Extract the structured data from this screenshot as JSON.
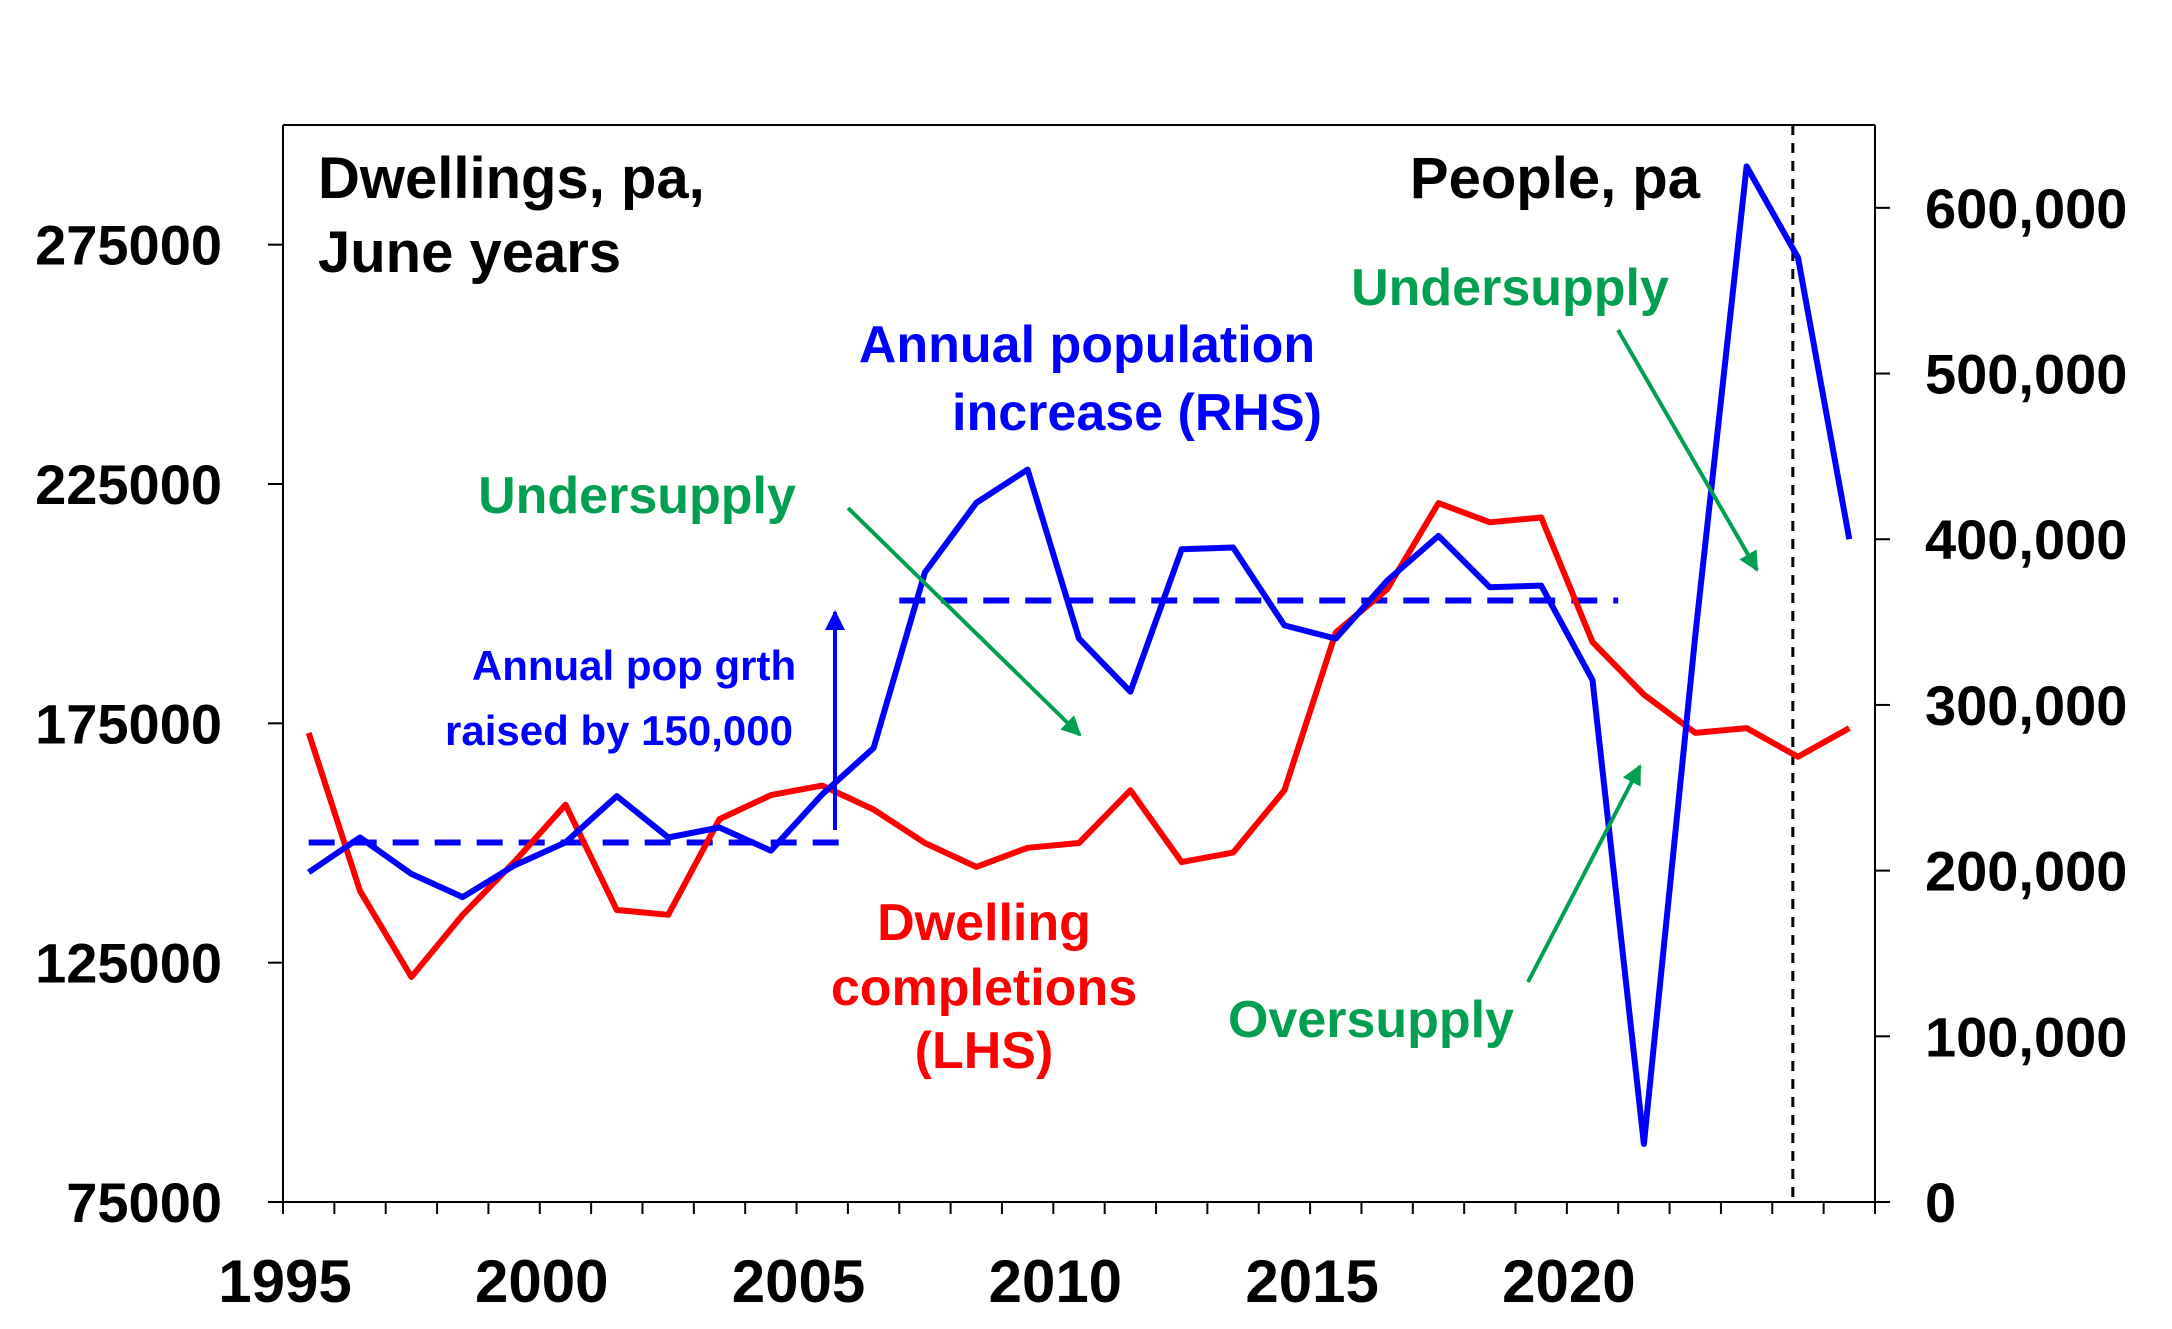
{
  "chart_data": {
    "type": "line",
    "x": [
      1995.5,
      1996.5,
      1997.5,
      1998.5,
      1999.5,
      2000.5,
      2001.5,
      2002.5,
      2003.5,
      2004.5,
      2005.5,
      2006.5,
      2007.5,
      2008.5,
      2009.5,
      2010.5,
      2011.5,
      2012.5,
      2013.5,
      2014.5,
      2015.5,
      2016.5,
      2017.5,
      2018.5,
      2019.5,
      2020.5,
      2021.5,
      2022.5,
      2023.5,
      2024.5,
      2025.5
    ],
    "xticks": [
      "1995",
      "2000",
      "2005",
      "2010",
      "2015",
      "2020"
    ],
    "xlim": [
      1995,
      2026
    ],
    "series": [
      {
        "axis": "left",
        "color": "#ff0000",
        "x": [
          1995.5,
          1996.5,
          1997.5,
          1998.5,
          1999.5,
          2000.5,
          2001.5,
          2002.5,
          2003.5,
          2004.5,
          2005.5,
          2006.5,
          2007.5,
          2008.5,
          2009.5,
          2010.5,
          2011.5,
          2012.5,
          2013.5,
          2014.5,
          2015.5,
          2016.5,
          2017.5,
          2018.5,
          2019.5,
          2020.5,
          2021.5,
          2022.5,
          2023.5,
          2024.5,
          2025.5
        ],
        "values": [
          173000,
          140000,
          122000,
          135000,
          146000,
          158000,
          136000,
          135000,
          155000,
          160000,
          162000,
          157000,
          150000,
          145000,
          149000,
          150000,
          161000,
          146000,
          148000,
          161000,
          194000,
          203000,
          221000,
          217000,
          218000,
          192000,
          181000,
          173000,
          174000,
          168000,
          174000
        ]
      },
      {
        "axis": "right",
        "color": "#0000ff",
        "x": [
          1995.5,
          1996.5,
          1997.5,
          1998.5,
          1999.5,
          2000.5,
          2001.5,
          2002.5,
          2003.5,
          2004.5,
          2005.5,
          2006.5,
          2007.5,
          2008.5,
          2009.5,
          2010.5,
          2011.5,
          2012.5,
          2013.5,
          2014.5,
          2015.5,
          2016.5,
          2017.5,
          2018.5,
          2019.5,
          2020.5,
          2021.5,
          2022.5,
          2023.5,
          2024.5,
          2025.5
        ],
        "values": [
          199000,
          220000,
          198000,
          184000,
          203000,
          217000,
          245000,
          220000,
          226000,
          212000,
          246000,
          274000,
          380000,
          422000,
          442000,
          340000,
          308000,
          394000,
          395000,
          348000,
          340000,
          375000,
          402000,
          371000,
          372000,
          315000,
          35000,
          342000,
          625000,
          570000,
          400000
        ]
      }
    ],
    "left_axis": {
      "ylim": [
        75000,
        300000
      ],
      "ticks": [
        75000,
        125000,
        175000,
        225000,
        275000
      ],
      "tick_labels": [
        "75000",
        "125000",
        "175000",
        "225000",
        "275000"
      ]
    },
    "right_axis": {
      "ylim": [
        0,
        650000
      ],
      "ticks": [
        0,
        100000,
        200000,
        300000,
        400000,
        500000,
        600000
      ],
      "tick_labels": [
        "0",
        "100,000",
        "200,000",
        "300,000",
        "400,000",
        "500,000",
        "600,000"
      ]
    },
    "reference_lines": [
      {
        "axis": "right",
        "style": "dashed",
        "color": "#0000ff",
        "x": [
          1995.5,
          2006.0
        ],
        "y": 217000
      },
      {
        "axis": "right",
        "style": "dashed",
        "color": "#0000ff",
        "x": [
          2007.0,
          2021.0
        ],
        "y": 363000
      }
    ],
    "vertical_marker": {
      "x": 2024.4,
      "style": "dashed",
      "color": "#000000"
    },
    "grid": false,
    "annotations": {
      "left_title": [
        "Dwellings, pa,",
        "June years"
      ],
      "right_title": "People, pa",
      "population_label": [
        "Annual population",
        "increase (RHS)"
      ],
      "dwelling_label": [
        "Dwelling",
        "completions",
        "(LHS)"
      ],
      "pop_growth_note": [
        "Annual pop grth",
        "raised by 150,000"
      ],
      "undersupply_1": "Undersupply",
      "undersupply_2": "Undersupply",
      "oversupply": "Oversupply"
    },
    "colors": {
      "population": "#0000ff",
      "dwellings": "#ff0000",
      "supply_labels": "#00a050",
      "axis": "#000000"
    }
  }
}
